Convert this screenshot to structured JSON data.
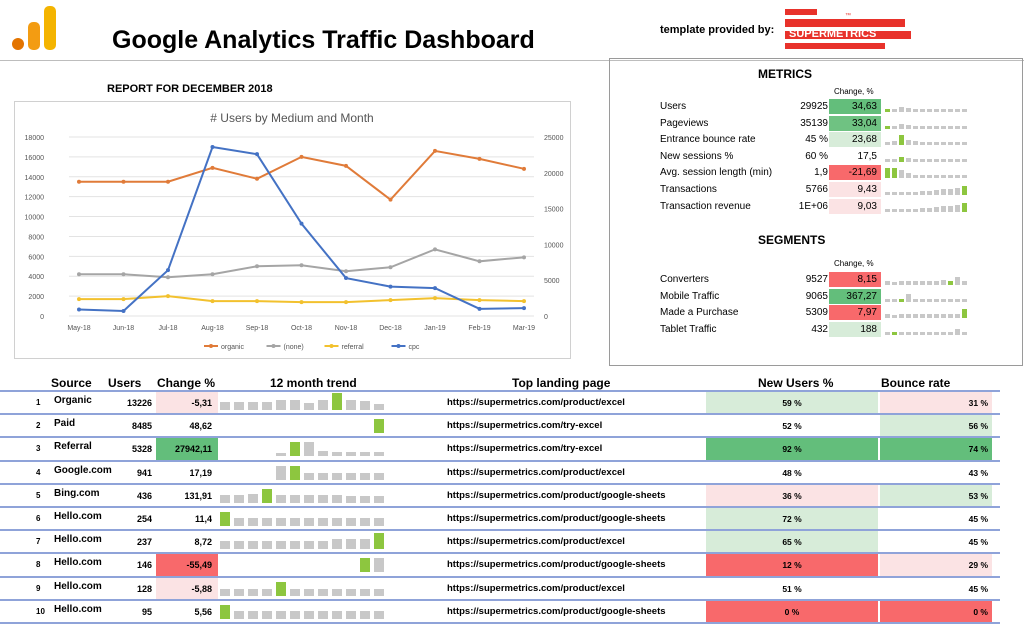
{
  "header": {
    "title": "Google Analytics Traffic Dashboard",
    "provided_label": "template provided by:",
    "brand": "SUPERMETRICS",
    "brand_tm": "™",
    "brand_color": "#e8322b",
    "logo_colors": [
      "#f4b400",
      "#f39c12",
      "#e37400"
    ]
  },
  "report_label": "REPORT FOR DECEMBER 2018",
  "chart_data": {
    "type": "line",
    "title": "# Users by Medium and Month",
    "categories": [
      "May-18",
      "Jun-18",
      "Jul-18",
      "Aug-18",
      "Sep-18",
      "Oct-18",
      "Nov-18",
      "Dec-18",
      "Jan-19",
      "Feb-19",
      "Mar-19"
    ],
    "ylim_left": [
      0,
      18000
    ],
    "yticks_left": [
      "0",
      "2000",
      "4000",
      "6000",
      "8000",
      "10000",
      "12000",
      "14000",
      "16000",
      "18000"
    ],
    "ylim_right": [
      0,
      25000
    ],
    "yticks_right": [
      "0",
      "5000",
      "10000",
      "15000",
      "20000",
      "25000"
    ],
    "grid": true,
    "legend_position": "bottom",
    "series": [
      {
        "name": "organic",
        "color": "#e07b39",
        "axis": "left",
        "values": [
          13500,
          13500,
          13500,
          14900,
          13800,
          16000,
          15100,
          11700,
          16600,
          15800,
          14800
        ]
      },
      {
        "name": "(none)",
        "color": "#a5a5a5",
        "axis": "left",
        "values": [
          4200,
          4200,
          3900,
          4200,
          5000,
          5100,
          4500,
          4900,
          6700,
          5500,
          5900
        ]
      },
      {
        "name": "referral",
        "color": "#f2c12e",
        "axis": "left",
        "values": [
          1700,
          1700,
          2000,
          1500,
          1500,
          1400,
          1400,
          1600,
          1800,
          1600,
          1500
        ]
      },
      {
        "name": "cpc",
        "color": "#4472c4",
        "axis": "right",
        "values": [
          900,
          700,
          6400,
          23600,
          22600,
          12900,
          5300,
          4100,
          3900,
          1000,
          1100
        ]
      }
    ]
  },
  "metrics": {
    "title": "METRICS",
    "change_header": "Change, %",
    "rows": [
      {
        "label": "Users",
        "value": "29925",
        "change": "34,63",
        "bg": "#63be7b",
        "spark": [
          3,
          3,
          5,
          4,
          3,
          3,
          3,
          3,
          3,
          3,
          3,
          3
        ],
        "hl": [
          0
        ]
      },
      {
        "label": "Pageviews",
        "value": "35139",
        "change": "33,04",
        "bg": "#6fc282",
        "spark": [
          3,
          3,
          5,
          4,
          3,
          3,
          3,
          3,
          3,
          3,
          3,
          3
        ],
        "hl": [
          0
        ]
      },
      {
        "label": "Entrance bounce rate",
        "value": "45 %",
        "change": "23,68",
        "bg": "#d7ecd9",
        "spark": [
          3,
          4,
          10,
          5,
          4,
          3,
          3,
          3,
          3,
          3,
          3,
          3
        ],
        "hl": [
          2
        ]
      },
      {
        "label": "New sessions %",
        "value": "60 %",
        "change": "17,5",
        "bg": "#ffffff",
        "spark": [
          3,
          3,
          5,
          4,
          3,
          3,
          3,
          3,
          3,
          3,
          3,
          3
        ],
        "hl": [
          2
        ]
      },
      {
        "label": "Avg. session length (min)",
        "value": "1,9",
        "change": "-21,69",
        "bg": "#f8696b",
        "spark": [
          10,
          10,
          8,
          5,
          3,
          3,
          3,
          3,
          3,
          3,
          3,
          3
        ],
        "hl": [
          0,
          1
        ]
      },
      {
        "label": "Transactions",
        "value": "5766",
        "change": "9,43",
        "bg": "#fbe3e4",
        "spark": [
          3,
          3,
          3,
          3,
          3,
          4,
          4,
          5,
          6,
          6,
          7,
          9
        ],
        "hl": [
          11
        ]
      },
      {
        "label": "Transaction revenue",
        "value": "1E+06",
        "change": "9,03",
        "bg": "#fbe3e4",
        "spark": [
          3,
          3,
          3,
          3,
          3,
          4,
          4,
          5,
          6,
          6,
          7,
          9
        ],
        "hl": [
          11
        ]
      }
    ]
  },
  "segments": {
    "title": "SEGMENTS",
    "change_header": "Change, %",
    "rows": [
      {
        "label": "Converters",
        "value": "9527",
        "change": "8,15",
        "bg": "#f8696b",
        "spark": [
          4,
          3,
          4,
          4,
          4,
          4,
          4,
          4,
          5,
          4,
          8,
          4
        ],
        "hl": [
          9
        ]
      },
      {
        "label": "Mobile Traffic",
        "value": "9065",
        "change": "367,27",
        "bg": "#63be7b",
        "spark": [
          3,
          3,
          3,
          8,
          3,
          3,
          3,
          3,
          3,
          3,
          3,
          3
        ],
        "hl": [
          2
        ]
      },
      {
        "label": "Made a Purchase",
        "value": "5309",
        "change": "7,97",
        "bg": "#f8696b",
        "spark": [
          4,
          3,
          4,
          4,
          4,
          4,
          4,
          4,
          4,
          4,
          4,
          9
        ],
        "hl": [
          11
        ]
      },
      {
        "label": "Tablet Traffic",
        "value": "432",
        "change": "188",
        "bg": "#d7ecd9",
        "spark": [
          3,
          3,
          3,
          3,
          3,
          3,
          3,
          3,
          3,
          3,
          6,
          3
        ],
        "hl": [
          1
        ]
      }
    ]
  },
  "table": {
    "headers": {
      "source": "Source",
      "users": "Users",
      "change": "Change %",
      "trend": "12 month trend",
      "landing": "Top landing page",
      "newusers": "New Users %",
      "bounce": "Bounce rate"
    },
    "rows": [
      {
        "n": "1",
        "source": "Organic",
        "users": "13226",
        "change": "-5,31",
        "change_bg": "#fbe3e4",
        "trend": [
          8,
          8,
          8,
          8,
          10,
          10,
          7,
          10,
          17,
          10,
          9,
          6
        ],
        "hl": [
          8
        ],
        "page": "https://supermetrics.com/product/excel",
        "new": "59 %",
        "new_bg": "#d7ecd9",
        "bounce": "31 %",
        "bounce_bg": "#fbe3e4"
      },
      {
        "n": "2",
        "source": "Paid",
        "users": "8485",
        "change": "48,62",
        "change_bg": "#ffffff",
        "trend": [
          0,
          0,
          0,
          0,
          0,
          0,
          0,
          0,
          0,
          0,
          0,
          14
        ],
        "hl": [
          11
        ],
        "page": "https://supermetrics.com/try-excel",
        "new": "52 %",
        "new_bg": "#ffffff",
        "bounce": "56 %",
        "bounce_bg": "#d7ecd9"
      },
      {
        "n": "3",
        "source": "Referral",
        "users": "5328",
        "change": "27942,11",
        "change_bg": "#63be7b",
        "trend": [
          0,
          0,
          0,
          0,
          3,
          14,
          14,
          5,
          4,
          4,
          4,
          4
        ],
        "hl": [
          5
        ],
        "page": "https://supermetrics.com/try-excel",
        "new": "92 %",
        "new_bg": "#63be7b",
        "bounce": "74 %",
        "bounce_bg": "#63be7b"
      },
      {
        "n": "4",
        "source": "Google.com",
        "users": "941",
        "change": "17,19",
        "change_bg": "#ffffff",
        "trend": [
          0,
          0,
          0,
          0,
          14,
          14,
          7,
          7,
          7,
          7,
          7,
          7
        ],
        "hl": [
          5
        ],
        "page": "https://supermetrics.com/product/excel",
        "new": "48 %",
        "new_bg": "#ffffff",
        "bounce": "43 %",
        "bounce_bg": "#ffffff"
      },
      {
        "n": "5",
        "source": "Bing.com",
        "users": "436",
        "change": "131,91",
        "change_bg": "#ffffff",
        "trend": [
          8,
          8,
          9,
          14,
          8,
          8,
          8,
          8,
          8,
          7,
          7,
          7
        ],
        "hl": [
          3
        ],
        "page": "https://supermetrics.com/product/google-sheets",
        "new": "36 %",
        "new_bg": "#fbe3e4",
        "bounce": "53 %",
        "bounce_bg": "#d7ecd9"
      },
      {
        "n": "6",
        "source": "Hello.com",
        "users": "254",
        "change": "11,4",
        "change_bg": "#ffffff",
        "trend": [
          14,
          8,
          8,
          8,
          8,
          8,
          8,
          8,
          8,
          8,
          8,
          8
        ],
        "hl": [
          0
        ],
        "page": "https://supermetrics.com/product/google-sheets",
        "new": "72 %",
        "new_bg": "#d7ecd9",
        "bounce": "45 %",
        "bounce_bg": "#ffffff"
      },
      {
        "n": "7",
        "source": "Hello.com",
        "users": "237",
        "change": "8,72",
        "change_bg": "#ffffff",
        "trend": [
          8,
          8,
          8,
          8,
          8,
          8,
          8,
          8,
          10,
          10,
          10,
          16
        ],
        "hl": [
          11
        ],
        "page": "https://supermetrics.com/product/excel",
        "new": "65 %",
        "new_bg": "#d7ecd9",
        "bounce": "45 %",
        "bounce_bg": "#ffffff"
      },
      {
        "n": "8",
        "source": "Hello.com",
        "users": "146",
        "change": "-55,49",
        "change_bg": "#f8696b",
        "trend": [
          0,
          0,
          0,
          0,
          0,
          0,
          0,
          0,
          0,
          0,
          14,
          14
        ],
        "hl": [
          10
        ],
        "page": "https://supermetrics.com/product/google-sheets",
        "new": "12 %",
        "new_bg": "#f8696b",
        "bounce": "29 %",
        "bounce_bg": "#fbe3e4"
      },
      {
        "n": "9",
        "source": "Hello.com",
        "users": "128",
        "change": "-5,88",
        "change_bg": "#fbe3e4",
        "trend": [
          7,
          7,
          7,
          7,
          14,
          7,
          7,
          7,
          7,
          7,
          7,
          7
        ],
        "hl": [
          4
        ],
        "page": "https://supermetrics.com/product/excel",
        "new": "51 %",
        "new_bg": "#ffffff",
        "bounce": "45 %",
        "bounce_bg": "#ffffff"
      },
      {
        "n": "10",
        "source": "Hello.com",
        "users": "95",
        "change": "5,56",
        "change_bg": "#ffffff",
        "trend": [
          14,
          8,
          8,
          8,
          8,
          8,
          8,
          8,
          8,
          8,
          8,
          8
        ],
        "hl": [
          0
        ],
        "page": "https://supermetrics.com/product/google-sheets",
        "new": "0 %",
        "new_bg": "#f8696b",
        "bounce": "0 %",
        "bounce_bg": "#f8696b"
      }
    ]
  }
}
